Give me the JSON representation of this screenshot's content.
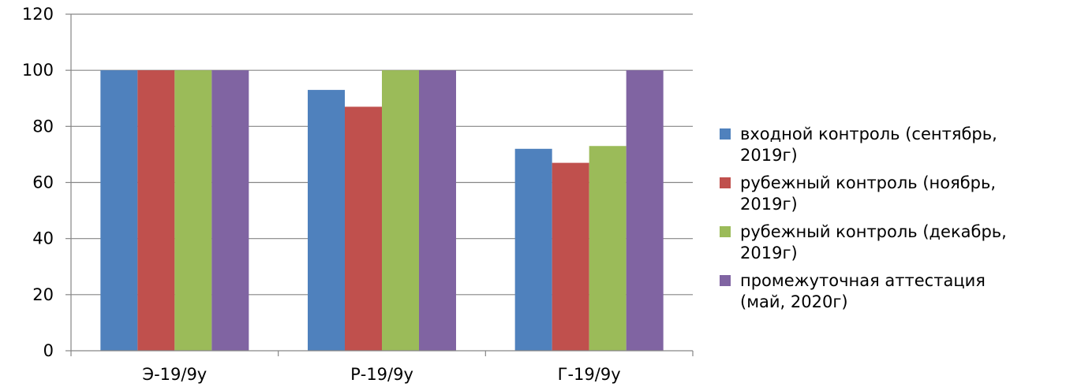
{
  "chart_data": {
    "type": "bar",
    "categories": [
      "Э-19/9у",
      "Р-19/9у",
      "Г-19/9у"
    ],
    "series": [
      {
        "name": "входной контроль (сентябрь, 2019г)",
        "color": "#4f81bd",
        "values": [
          100,
          93,
          72
        ]
      },
      {
        "name": "рубежный контроль (ноябрь, 2019г)",
        "color": "#c0504d",
        "values": [
          100,
          87,
          67
        ]
      },
      {
        "name": "рубежный контроль (декабрь, 2019г)",
        "color": "#9bbb59",
        "values": [
          100,
          100,
          73
        ]
      },
      {
        "name": "промежуточная аттестация (май, 2020г)",
        "color": "#8064a2",
        "values": [
          100,
          100,
          100
        ]
      }
    ],
    "legend_lines": [
      [
        "входной контроль (сентябрь,",
        "2019г)"
      ],
      [
        "рубежный контроль (ноябрь,",
        "2019г)"
      ],
      [
        "рубежный контроль (декабрь,",
        "2019г)"
      ],
      [
        "промежуточная аттестация",
        "(май, 2020г)"
      ]
    ],
    "yticks": [
      "0",
      "20",
      "40",
      "60",
      "80",
      "100",
      "120"
    ],
    "ylim": [
      0,
      120
    ],
    "grid": true,
    "legend_position": "right"
  }
}
